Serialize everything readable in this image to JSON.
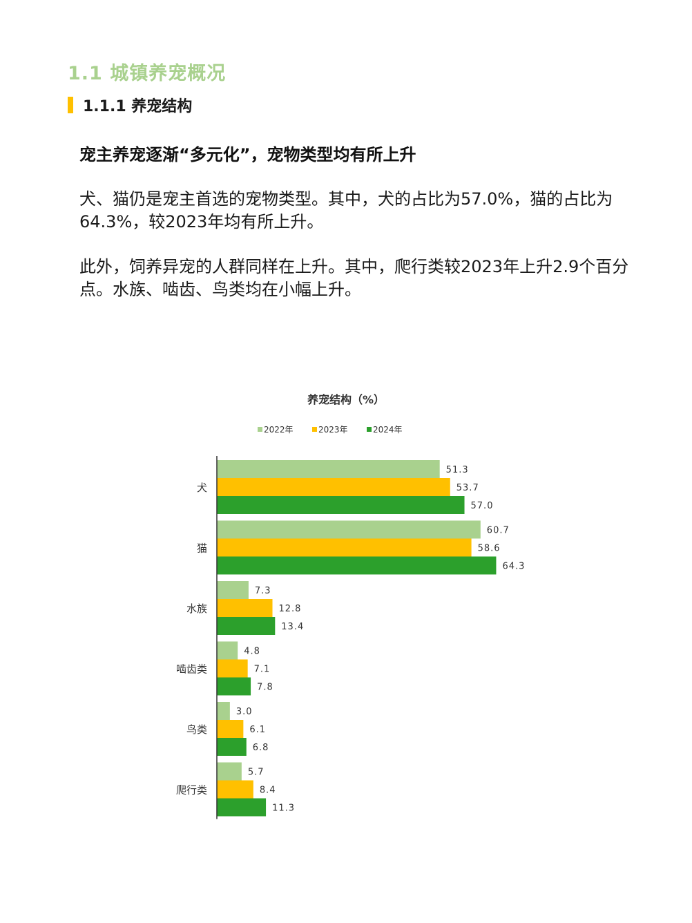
{
  "section": {
    "title": "1.1 城镇养宠概况",
    "subtitle": "1.1.1 养宠结构"
  },
  "headline": "宠主养宠逐渐“多元化”，宠物类型均有所上升",
  "paragraphs": [
    "犬、猫仍是宠主首选的宠物类型。其中，犬的占比为57.0%，猫的占比为64.3%，较2023年均有所上升。",
    "此外，饲养异宠的人群同样在上升。其中，爬行类较2023年上升2.9个百分点。水族、啮齿、鸟类均在小幅上升。"
  ],
  "chart_data": {
    "type": "bar",
    "orientation": "horizontal",
    "title": "养宠结构（%）",
    "categories": [
      "犬",
      "猫",
      "水族",
      "啮齿类",
      "鸟类",
      "爬行类"
    ],
    "series": [
      {
        "name": "2022年",
        "color": "#a9d18e",
        "values": [
          51.3,
          60.7,
          7.3,
          4.8,
          3.0,
          5.7
        ],
        "labels": [
          "51.3",
          "60.7",
          "7.3",
          "4.8",
          "3.0",
          "5.7"
        ]
      },
      {
        "name": "2023年",
        "color": "#ffc000",
        "values": [
          53.7,
          58.6,
          12.8,
          7.1,
          6.1,
          8.4
        ],
        "labels": [
          "53.7",
          "58.6",
          "12.8",
          "7.1",
          "6.1",
          "8.4"
        ]
      },
      {
        "name": "2024年",
        "color": "#2ca02c",
        "values": [
          57.0,
          64.3,
          13.4,
          7.8,
          6.8,
          11.3
        ],
        "labels": [
          "57.0",
          "64.3",
          "13.4",
          "7.8",
          "6.8",
          "11.3"
        ]
      }
    ],
    "xlim": [
      0,
      70
    ],
    "legend": "top-center",
    "grid": false,
    "xlabel": "",
    "ylabel": ""
  }
}
